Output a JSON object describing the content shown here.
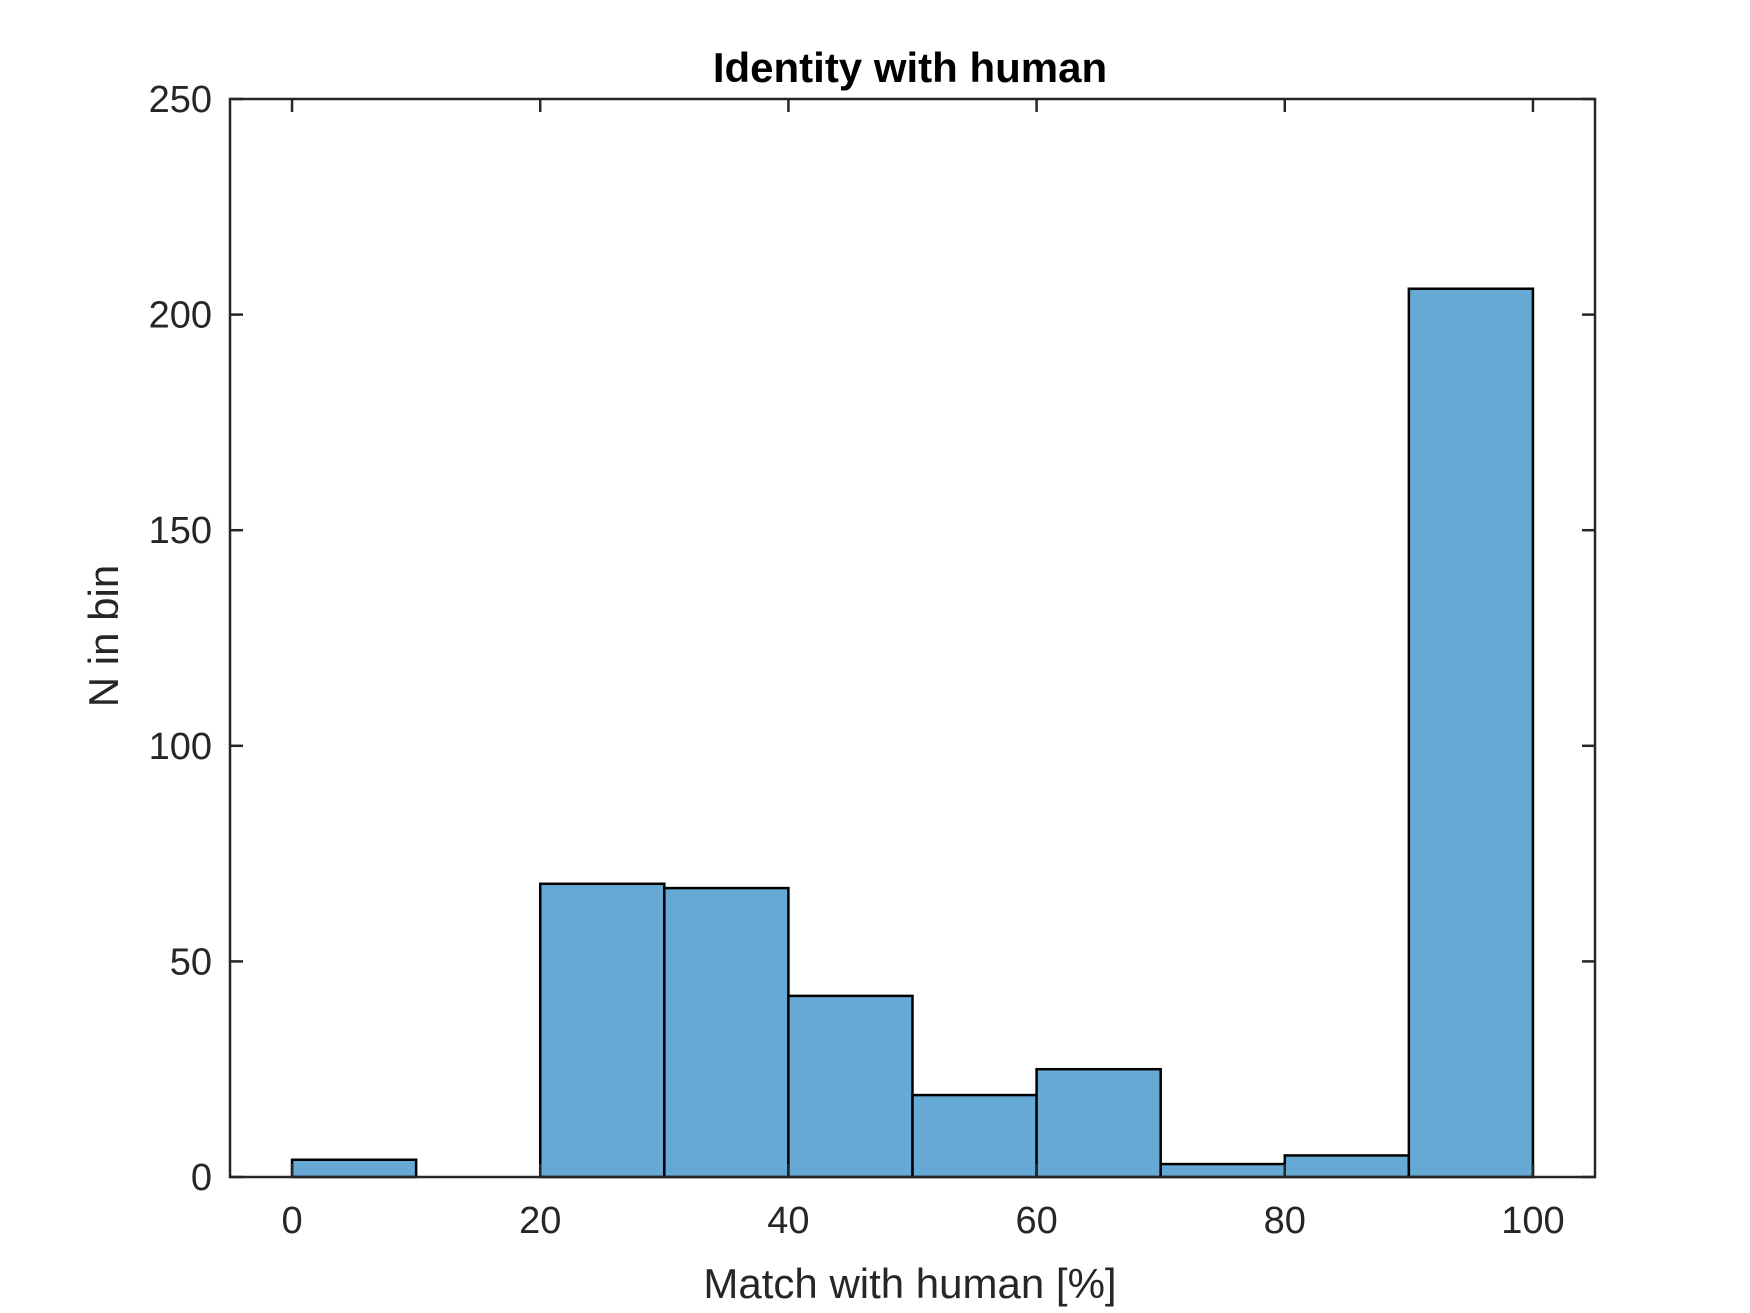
{
  "chart_data": {
    "type": "bar",
    "title": "Identity with human",
    "xlabel": "Match with human [%]",
    "ylabel": "N in bin",
    "xlim": [
      -5,
      105
    ],
    "ylim": [
      0,
      250
    ],
    "xticks": [
      0,
      20,
      40,
      60,
      80,
      100
    ],
    "yticks": [
      0,
      50,
      100,
      150,
      200,
      250
    ],
    "bin_edges": [
      0,
      10,
      20,
      30,
      40,
      50,
      60,
      70,
      80,
      90,
      100
    ],
    "values": [
      4,
      0,
      68,
      67,
      42,
      19,
      25,
      3,
      5,
      206
    ],
    "bar_color": "#66a9d5",
    "edge_color": "#000000",
    "grid": false
  }
}
